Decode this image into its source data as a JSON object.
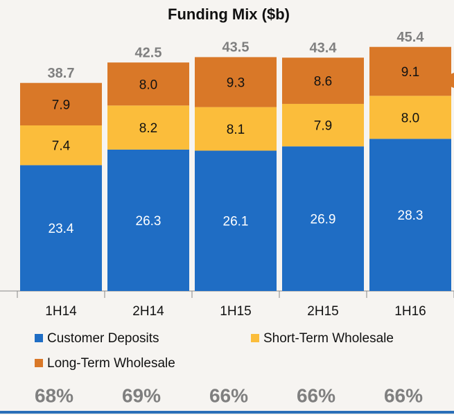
{
  "chart_data": {
    "type": "stacked_bar",
    "title": "Funding Mix ($b)",
    "categories": [
      "1H14",
      "2H14",
      "1H15",
      "2H15",
      "1H16"
    ],
    "series": [
      {
        "name": "Customer Deposits",
        "color": "#1f6dc4",
        "values": [
          23.4,
          26.3,
          26.1,
          26.9,
          28.3
        ],
        "value_labels": [
          "23.4",
          "26.3",
          "26.1",
          "26.9",
          "28.3"
        ]
      },
      {
        "name": "Short-Term Wholesale",
        "color": "#fbbd3b",
        "values": [
          7.4,
          8.2,
          8.1,
          7.9,
          8.0
        ],
        "value_labels": [
          "7.4",
          "8.2",
          "8.1",
          "7.9",
          "8.0"
        ]
      },
      {
        "name": "Long-Term Wholesale",
        "color": "#d97828",
        "values": [
          7.9,
          8.0,
          9.3,
          8.6,
          9.1
        ],
        "value_labels": [
          "7.9",
          "8.0",
          "9.3",
          "8.6",
          "9.1"
        ]
      }
    ],
    "totals": [
      38.7,
      42.5,
      43.5,
      43.4,
      45.4
    ],
    "footer_labels": [
      "68%",
      "69%",
      "66%",
      "66%",
      "66%"
    ],
    "ylim": [
      0,
      50
    ]
  }
}
